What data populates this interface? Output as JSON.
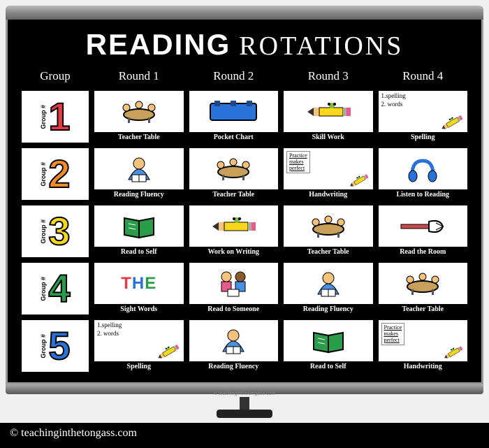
{
  "title": {
    "part1": "READING",
    "part2": "ROTATIONS"
  },
  "headers": [
    "Group",
    "Round 1",
    "Round 2",
    "Round 3",
    "Round 4"
  ],
  "groups": [
    {
      "num": "1",
      "color": "#e63946",
      "label": "Group #"
    },
    {
      "num": "2",
      "color": "#f28c28",
      "label": "Group #"
    },
    {
      "num": "3",
      "color": "#f9d71c",
      "label": "Group #"
    },
    {
      "num": "4",
      "color": "#2a9d4a",
      "label": "Group #"
    },
    {
      "num": "5",
      "color": "#2972d9",
      "label": "Group #"
    }
  ],
  "cells": [
    [
      {
        "type": "icon",
        "icon": "teacher-table",
        "label": "Teacher Table"
      },
      {
        "type": "icon",
        "icon": "pocket-chart",
        "label": "Pocket Chart"
      },
      {
        "type": "icon",
        "icon": "pencil",
        "label": "Skill Work"
      },
      {
        "type": "spelling",
        "lines": [
          "1.spelling",
          "2. words"
        ],
        "label": "Spelling"
      }
    ],
    [
      {
        "type": "icon",
        "icon": "fluency",
        "label": "Reading Fluency"
      },
      {
        "type": "icon",
        "icon": "teacher-table",
        "label": "Teacher Table"
      },
      {
        "type": "practice",
        "lines": [
          "Practice",
          "makes",
          "perfect"
        ],
        "label": "Handwriting"
      },
      {
        "type": "icon",
        "icon": "headphones",
        "label": "Listen to Reading"
      }
    ],
    [
      {
        "type": "icon",
        "icon": "book-green",
        "label": "Read to Self"
      },
      {
        "type": "icon",
        "icon": "pencil",
        "label": "Work on Writing"
      },
      {
        "type": "icon",
        "icon": "teacher-table",
        "label": "Teacher Table"
      },
      {
        "type": "icon",
        "icon": "pointer",
        "label": "Read the Room"
      }
    ],
    [
      {
        "type": "sight",
        "letters": [
          [
            "T",
            "#e63946"
          ],
          [
            "H",
            "#2972d9"
          ],
          [
            "E",
            "#2a9d4a"
          ]
        ],
        "label": "Sight Words"
      },
      {
        "type": "icon",
        "icon": "kids",
        "label": "Read to Someone"
      },
      {
        "type": "icon",
        "icon": "fluency",
        "label": "Reading Fluency"
      },
      {
        "type": "icon",
        "icon": "teacher-table",
        "label": "Teacher Table"
      }
    ],
    [
      {
        "type": "spelling",
        "lines": [
          "1.spelling",
          "2. words"
        ],
        "label": "Spelling"
      },
      {
        "type": "icon",
        "icon": "fluency",
        "label": "Reading Fluency"
      },
      {
        "type": "icon",
        "icon": "book-green",
        "label": "Read to Self"
      },
      {
        "type": "practice",
        "lines": [
          "Practice",
          "makes",
          "perfect"
        ],
        "label": "Handwriting"
      }
    ]
  ],
  "footer": "© teachinginthetongass.com",
  "small_copyright": "© teachinginthetongass.com",
  "colors": {
    "bg": "#000000",
    "text": "#ffffff",
    "cell_bg": "#ffffff"
  }
}
